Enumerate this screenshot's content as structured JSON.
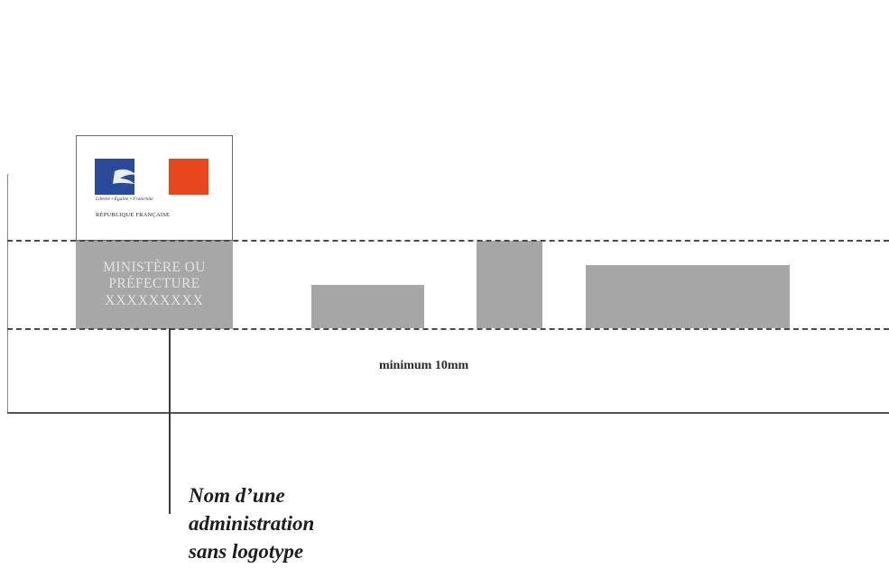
{
  "logo": {
    "motto": "Liberté • Égalité • Fraternité",
    "republic": "RÉPUBLIQUE FRANÇAISE",
    "colors": {
      "blue": "#2a4a9a",
      "red": "#e8471e"
    }
  },
  "ministry_block": {
    "lines": [
      "MINISTÈRE OU",
      "PRÉFECTURE",
      "XXXXXXXXX"
    ],
    "fill_color": "#a7a7a7",
    "text_color": "#e3e3e3"
  },
  "bars_color": "#a6a6a6",
  "measure": {
    "label": "minimum 10mm"
  },
  "caption": {
    "lines": [
      "Nom d’une",
      "administration",
      "sans logotype"
    ]
  }
}
